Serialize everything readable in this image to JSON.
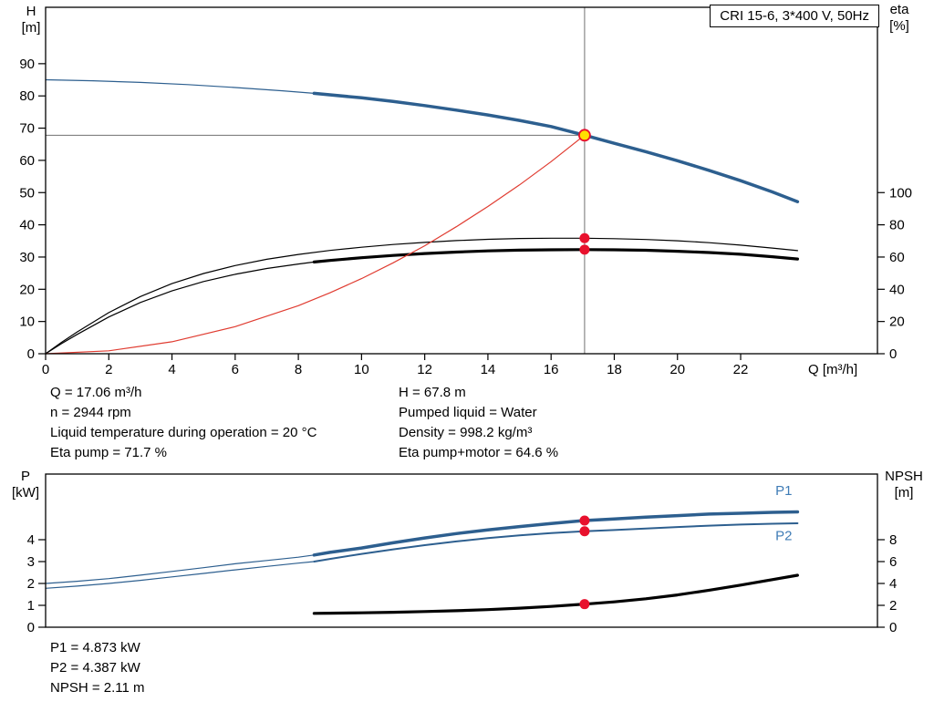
{
  "page": {
    "background": "#ffffff"
  },
  "info_top": {
    "left": [
      "Q = 17.06 m³/h",
      "n = 2944 rpm",
      "Liquid temperature during operation = 20 °C",
      "Eta pump = 71.7 %"
    ],
    "right": [
      "H = 67.8 m",
      "Pumped liquid = Water",
      "Density = 998.2 kg/m³",
      "Eta pump+motor = 64.6 %"
    ]
  },
  "info_bottom": [
    "P1 = 4.873 kW",
    "P2 = 4.387 kW",
    "NPSH = 2.11 m"
  ],
  "colors": {
    "curve_blue": "#2d5f8f",
    "label_blue": "#3f7cb6",
    "red": "#e8112d",
    "system_red": "#e03c31",
    "guide_gray": "#707070",
    "duty_yellow": "#ffdf00",
    "black": "#000000"
  },
  "chart_data": [
    {
      "type": "line",
      "name": "hq-eta-chart",
      "title": "CRI 15-6, 3*400 V, 50Hz",
      "x_axis": {
        "label": "Q [m³/h]",
        "min": 0,
        "max": 26.33,
        "ticks": [
          0,
          2,
          4,
          6,
          8,
          10,
          12,
          14,
          16,
          18,
          20,
          22
        ]
      },
      "y_left": {
        "name": "H",
        "unit": "[m]",
        "min": 0,
        "max": 107.5,
        "ticks": [
          0,
          10,
          20,
          30,
          40,
          50,
          60,
          70,
          80,
          90
        ]
      },
      "y_right": {
        "name": "eta",
        "unit": "[%]",
        "min": 0,
        "max": 215,
        "ticks": [
          0,
          20,
          40,
          60,
          80,
          100
        ]
      },
      "guides": [
        {
          "type": "v",
          "x": 17.06,
          "color": "#707070"
        },
        {
          "type": "h",
          "v": 67.8,
          "x_end": 17.06,
          "color": "#707070"
        }
      ],
      "series": [
        {
          "name": "head-curve-thin",
          "axis": "left",
          "color": "#2d5f8f",
          "width": 1.2,
          "points": [
            [
              0,
              85
            ],
            [
              1.5,
              84.7
            ],
            [
              3,
              84.2
            ],
            [
              4.5,
              83.5
            ],
            [
              6,
              82.6
            ],
            [
              7.5,
              81.6
            ],
            [
              8.5,
              80.8
            ]
          ]
        },
        {
          "name": "head-curve",
          "axis": "left",
          "color": "#2d5f8f",
          "width": 3.5,
          "points": [
            [
              8.5,
              80.8
            ],
            [
              10,
              79.4
            ],
            [
              11,
              78.3
            ],
            [
              12,
              77
            ],
            [
              13,
              75.6
            ],
            [
              14,
              74.1
            ],
            [
              15,
              72.4
            ],
            [
              16,
              70.5
            ],
            [
              17.06,
              67.8
            ],
            [
              18,
              65.3
            ],
            [
              19,
              62.7
            ],
            [
              20,
              59.9
            ],
            [
              21,
              56.9
            ],
            [
              22,
              53.7
            ],
            [
              23,
              50.2
            ],
            [
              23.8,
              47.2
            ]
          ]
        },
        {
          "name": "eta-pump-curve",
          "axis": "right",
          "color": "#000000",
          "width": 1.2,
          "points": [
            [
              0,
              0
            ],
            [
              0.5,
              7
            ],
            [
              1,
              13.5
            ],
            [
              2,
              25.5
            ],
            [
              3,
              35.5
            ],
            [
              4,
              43.5
            ],
            [
              5,
              49.8
            ],
            [
              6,
              54.7
            ],
            [
              7,
              58.6
            ],
            [
              8,
              61.6
            ],
            [
              9,
              64.1
            ],
            [
              10,
              66.1
            ],
            [
              11,
              67.8
            ],
            [
              12,
              69.1
            ],
            [
              13,
              70.2
            ],
            [
              14,
              71
            ],
            [
              15,
              71.5
            ],
            [
              16,
              71.7
            ],
            [
              17.06,
              71.7
            ],
            [
              18,
              71.4
            ],
            [
              19,
              70.9
            ],
            [
              20,
              70.1
            ],
            [
              21,
              68.9
            ],
            [
              22,
              67.4
            ],
            [
              23,
              65.6
            ],
            [
              23.8,
              64
            ]
          ]
        },
        {
          "name": "eta-pump-motor-thin",
          "axis": "right",
          "color": "#000000",
          "width": 1.2,
          "points": [
            [
              0,
              0
            ],
            [
              0.5,
              6.2
            ],
            [
              1,
              12
            ],
            [
              2,
              22.8
            ],
            [
              3,
              31.8
            ],
            [
              4,
              39
            ],
            [
              5,
              44.8
            ],
            [
              6,
              49.3
            ],
            [
              7,
              52.9
            ],
            [
              8,
              55.7
            ],
            [
              8.5,
              56.9
            ]
          ]
        },
        {
          "name": "eta-pump-motor-curve",
          "axis": "right",
          "color": "#000000",
          "width": 3.2,
          "points": [
            [
              8.5,
              56.9
            ],
            [
              9,
              57.9
            ],
            [
              10,
              59.6
            ],
            [
              11,
              61
            ],
            [
              12,
              62.2
            ],
            [
              13,
              63.1
            ],
            [
              14,
              63.8
            ],
            [
              15,
              64.3
            ],
            [
              16,
              64.5
            ],
            [
              17.06,
              64.6
            ],
            [
              18,
              64.5
            ],
            [
              19,
              64.2
            ],
            [
              20,
              63.6
            ],
            [
              21,
              62.8
            ],
            [
              22,
              61.7
            ],
            [
              23,
              60.2
            ],
            [
              23.8,
              58.8
            ]
          ]
        },
        {
          "name": "system-curve",
          "axis": "left",
          "color": "#e03c31",
          "width": 1.2,
          "points": [
            [
              0,
              0
            ],
            [
              2,
              0.9
            ],
            [
              4,
              3.7
            ],
            [
              6,
              8.4
            ],
            [
              8,
              14.9
            ],
            [
              9,
              18.9
            ],
            [
              10,
              23.3
            ],
            [
              11,
              28.2
            ],
            [
              12,
              33.5
            ],
            [
              13,
              39.4
            ],
            [
              14,
              45.7
            ],
            [
              15,
              52.4
            ],
            [
              16,
              59.6
            ],
            [
              17.06,
              67.8
            ]
          ]
        }
      ],
      "markers": [
        {
          "name": "duty-point",
          "x": 17.06,
          "axis": "left",
          "v": 67.8,
          "fill": "#ffdf00",
          "stroke": "#e8112d",
          "r": 6
        },
        {
          "name": "eta-pump-point",
          "x": 17.06,
          "axis": "right",
          "v": 71.7,
          "fill": "#e8112d",
          "r": 5.5
        },
        {
          "name": "eta-pump-motor-point",
          "x": 17.06,
          "axis": "right",
          "v": 64.6,
          "fill": "#e8112d",
          "r": 5.5
        }
      ],
      "curve_labels": []
    },
    {
      "type": "line",
      "name": "power-npsh-chart",
      "title": "",
      "x_axis": {
        "label": "",
        "min": 0,
        "max": 26.33,
        "ticks": []
      },
      "y_left": {
        "name": "P",
        "unit": "[kW]",
        "min": 0,
        "max": 7,
        "ticks": [
          0,
          1,
          2,
          3,
          4
        ]
      },
      "y_right": {
        "name": "NPSH",
        "unit": "[m]",
        "min": 0,
        "max": 14,
        "ticks": [
          0,
          2,
          4,
          6,
          8
        ]
      },
      "guides": [],
      "series": [
        {
          "name": "p1-curve-thin",
          "axis": "left",
          "color": "#2d5f8f",
          "width": 1.2,
          "points": [
            [
              0,
              2.0
            ],
            [
              1,
              2.1
            ],
            [
              2,
              2.22
            ],
            [
              3,
              2.38
            ],
            [
              4,
              2.55
            ],
            [
              5,
              2.72
            ],
            [
              6,
              2.9
            ],
            [
              7,
              3.05
            ],
            [
              8,
              3.2
            ],
            [
              8.5,
              3.3
            ]
          ]
        },
        {
          "name": "p1-curve",
          "axis": "left",
          "color": "#2d5f8f",
          "width": 3.5,
          "points": [
            [
              8.5,
              3.3
            ],
            [
              9,
              3.42
            ],
            [
              10,
              3.62
            ],
            [
              11,
              3.86
            ],
            [
              12,
              4.08
            ],
            [
              13,
              4.28
            ],
            [
              14,
              4.45
            ],
            [
              15,
              4.6
            ],
            [
              16,
              4.74
            ],
            [
              17.06,
              4.873
            ],
            [
              18,
              4.95
            ],
            [
              19,
              5.03
            ],
            [
              20,
              5.1
            ],
            [
              21,
              5.17
            ],
            [
              22,
              5.21
            ],
            [
              23,
              5.25
            ],
            [
              23.8,
              5.27
            ]
          ]
        },
        {
          "name": "p2-curve-thin",
          "axis": "left",
          "color": "#2d5f8f",
          "width": 1.2,
          "points": [
            [
              0,
              1.78
            ],
            [
              1,
              1.88
            ],
            [
              2,
              2.0
            ],
            [
              3,
              2.14
            ],
            [
              4,
              2.3
            ],
            [
              5,
              2.46
            ],
            [
              6,
              2.62
            ],
            [
              7,
              2.78
            ],
            [
              8,
              2.93
            ],
            [
              8.5,
              3.0
            ]
          ]
        },
        {
          "name": "p2-curve",
          "axis": "left",
          "color": "#2d5f8f",
          "width": 2,
          "points": [
            [
              8.5,
              3.0
            ],
            [
              9,
              3.12
            ],
            [
              10,
              3.35
            ],
            [
              11,
              3.56
            ],
            [
              12,
              3.75
            ],
            [
              13,
              3.92
            ],
            [
              14,
              4.07
            ],
            [
              15,
              4.2
            ],
            [
              16,
              4.3
            ],
            [
              17.06,
              4.387
            ],
            [
              18,
              4.44
            ],
            [
              19,
              4.51
            ],
            [
              20,
              4.58
            ],
            [
              21,
              4.64
            ],
            [
              22,
              4.69
            ],
            [
              23,
              4.73
            ],
            [
              23.8,
              4.75
            ]
          ]
        },
        {
          "name": "npsh-curve",
          "axis": "right",
          "color": "#000000",
          "width": 3.2,
          "points": [
            [
              8.5,
              1.27
            ],
            [
              9,
              1.28
            ],
            [
              10,
              1.32
            ],
            [
              11,
              1.37
            ],
            [
              12,
              1.43
            ],
            [
              13,
              1.51
            ],
            [
              14,
              1.61
            ],
            [
              15,
              1.74
            ],
            [
              16,
              1.9
            ],
            [
              17.06,
              2.11
            ],
            [
              18,
              2.32
            ],
            [
              19,
              2.6
            ],
            [
              20,
              2.95
            ],
            [
              21,
              3.38
            ],
            [
              22,
              3.85
            ],
            [
              23,
              4.35
            ],
            [
              23.8,
              4.75
            ]
          ]
        }
      ],
      "markers": [
        {
          "name": "p1-point",
          "x": 17.06,
          "axis": "left",
          "v": 4.873,
          "fill": "#e8112d",
          "r": 5.5
        },
        {
          "name": "p2-point",
          "x": 17.06,
          "axis": "left",
          "v": 4.387,
          "fill": "#e8112d",
          "r": 5.5
        },
        {
          "name": "npsh-point",
          "x": 17.06,
          "axis": "right",
          "v": 2.11,
          "fill": "#e8112d",
          "r": 5.5
        }
      ],
      "curve_labels": [
        {
          "text": "P1",
          "x": 23.1,
          "axis": "left",
          "v": 6.05,
          "color": "#3f7cb6"
        },
        {
          "text": "P2",
          "x": 23.1,
          "axis": "left",
          "v": 3.98,
          "color": "#3f7cb6"
        }
      ]
    }
  ]
}
